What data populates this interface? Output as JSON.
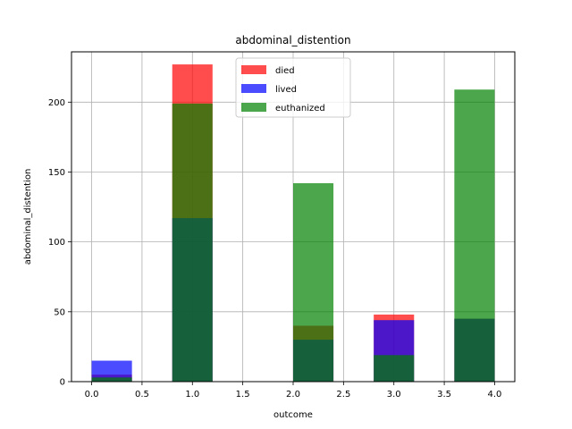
{
  "chart_data": {
    "type": "bar",
    "title": "abdominal_distention",
    "xlabel": "outcome",
    "ylabel": "abdominal_distention",
    "xlim": [
      -0.2,
      4.2
    ],
    "ylim": [
      0,
      236
    ],
    "xticks": [
      "0.0",
      "0.5",
      "1.0",
      "1.5",
      "2.0",
      "2.5",
      "3.0",
      "3.5",
      "4.0"
    ],
    "yticks": [
      "0",
      "50",
      "100",
      "150",
      "200"
    ],
    "grid": true,
    "legend_position": "top-center",
    "bar_alpha": 0.7,
    "bins": [
      {
        "start": 0.0,
        "end": 0.4
      },
      {
        "start": 0.8,
        "end": 1.2
      },
      {
        "start": 2.0,
        "end": 2.4
      },
      {
        "start": 2.8,
        "end": 3.2
      },
      {
        "start": 3.6,
        "end": 4.0
      }
    ],
    "series": [
      {
        "name": "died",
        "color": "#ff0000",
        "values": [
          5,
          227,
          40,
          48,
          45
        ]
      },
      {
        "name": "lived",
        "color": "#0000ff",
        "values": [
          15,
          117,
          30,
          44,
          45
        ]
      },
      {
        "name": "euthanized",
        "color": "#008000",
        "values": [
          3,
          199,
          142,
          19,
          209
        ]
      }
    ]
  }
}
